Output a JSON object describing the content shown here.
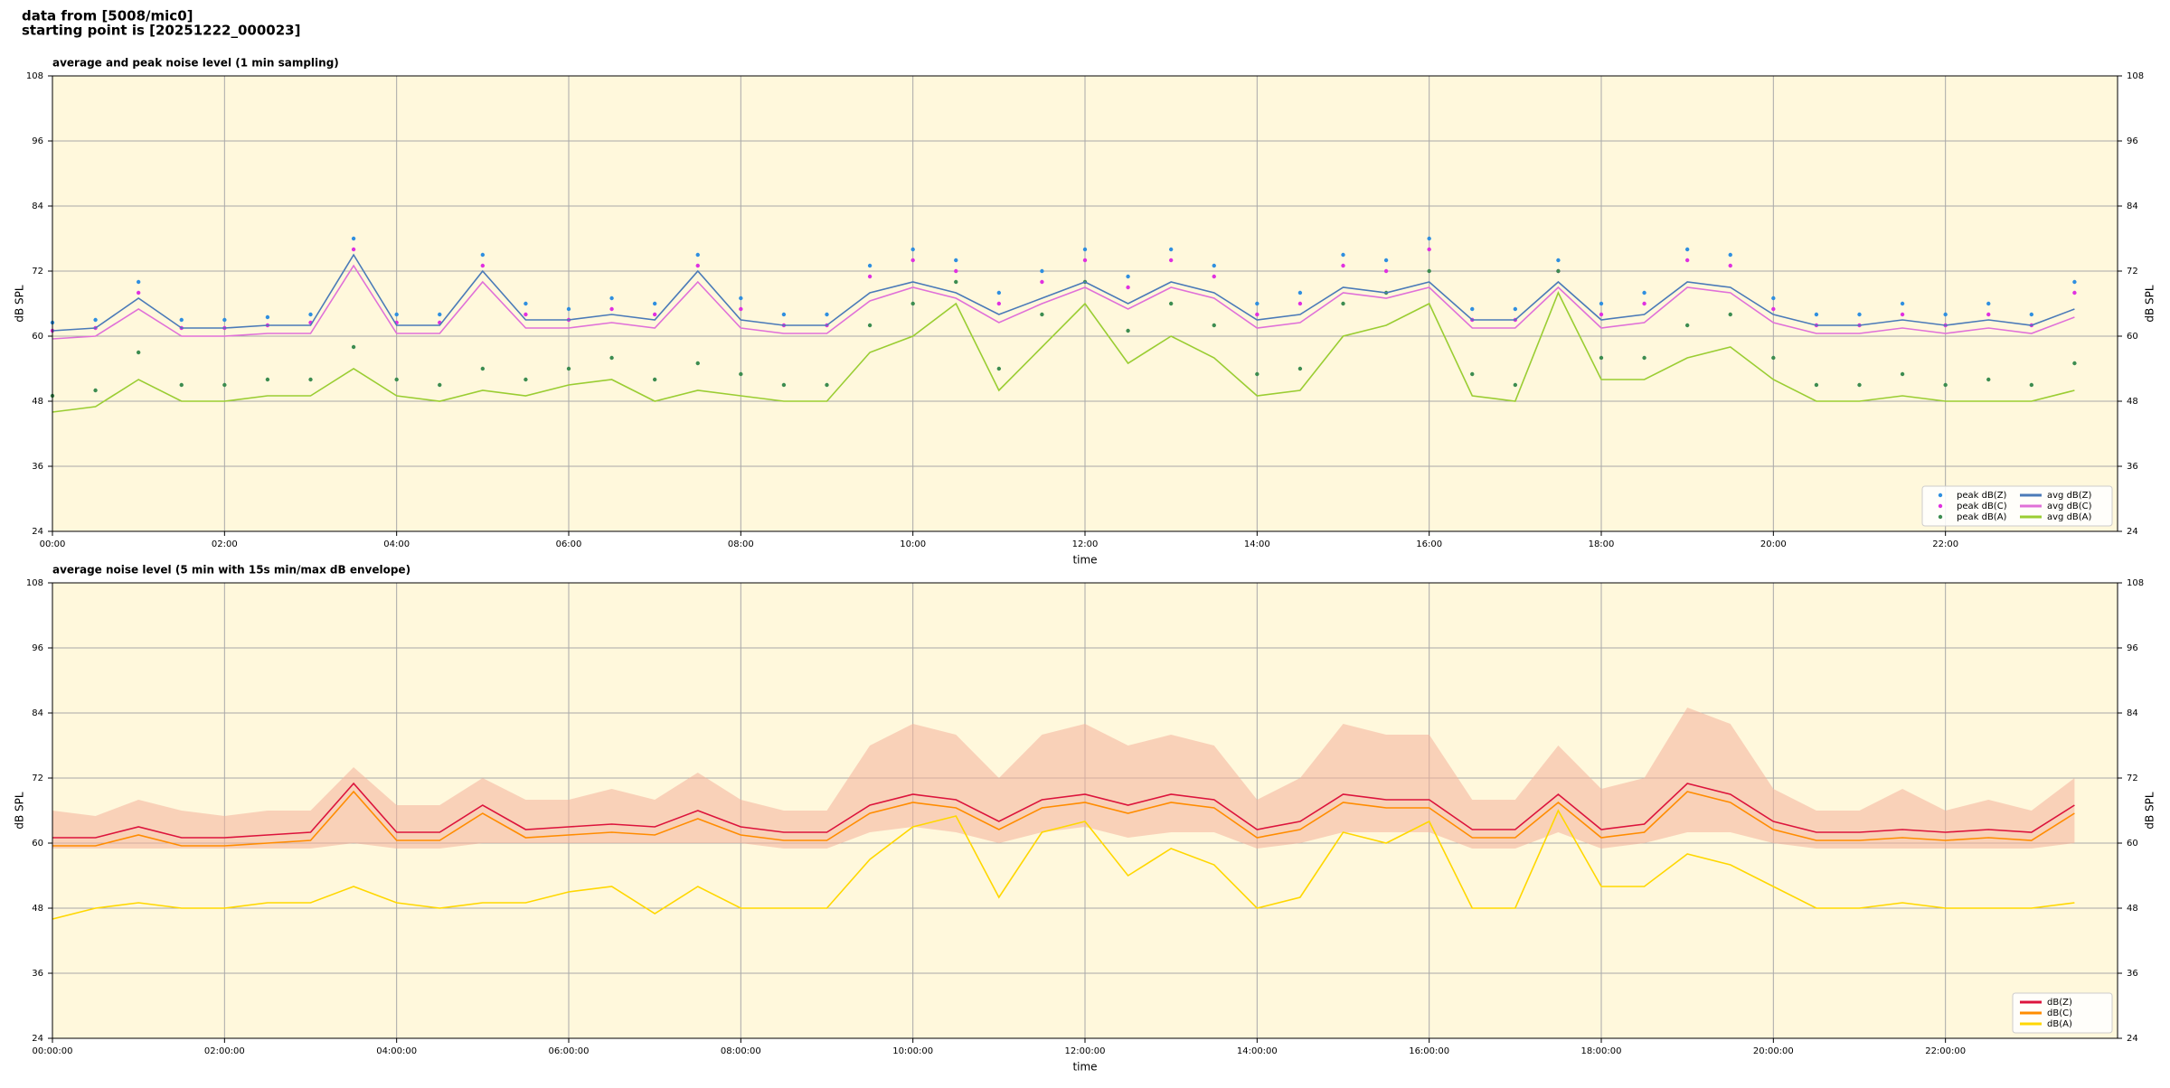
{
  "header": {
    "lines": [
      "data from [5008/mic0]",
      "starting point is [20251222_000023]"
    ]
  },
  "chart_data": [
    {
      "type": "line",
      "title": "average and peak noise level (1 min sampling)",
      "x_label": "time",
      "y_label": "dB SPL",
      "x": [
        0,
        30,
        60,
        90,
        120,
        150,
        180,
        210,
        240,
        270,
        300,
        330,
        360,
        390,
        420,
        450,
        480,
        510,
        540,
        570,
        600,
        630,
        660,
        690,
        720,
        750,
        780,
        810,
        840,
        870,
        900,
        930,
        960,
        990,
        1020,
        1050,
        1080,
        1110,
        1140,
        1170,
        1200,
        1230,
        1260,
        1290,
        1320,
        1350,
        1380,
        1410
      ],
      "xlim": [
        0,
        1440
      ],
      "xticks": [
        {
          "value": 0,
          "label": "00:00"
        },
        {
          "value": 120,
          "label": "02:00"
        },
        {
          "value": 240,
          "label": "04:00"
        },
        {
          "value": 360,
          "label": "06:00"
        },
        {
          "value": 480,
          "label": "08:00"
        },
        {
          "value": 600,
          "label": "10:00"
        },
        {
          "value": 720,
          "label": "12:00"
        },
        {
          "value": 840,
          "label": "14:00"
        },
        {
          "value": 960,
          "label": "16:00"
        },
        {
          "value": 1080,
          "label": "18:00"
        },
        {
          "value": 1200,
          "label": "20:00"
        },
        {
          "value": 1320,
          "label": "22:00"
        }
      ],
      "ylim": [
        24,
        108
      ],
      "yticks": [
        24,
        36,
        48,
        60,
        72,
        84,
        96,
        108
      ],
      "grid": true,
      "background": "#fff8dc",
      "legend": "lower right",
      "legend_columns": 2,
      "series": [
        {
          "name": "peak dB(Z)",
          "color": "#2f8fe0",
          "style": "points",
          "values": [
            62.5,
            63,
            70,
            63,
            63,
            63.5,
            64,
            78,
            64,
            64,
            75,
            66,
            65,
            67,
            66,
            75,
            67,
            64,
            64,
            73,
            76,
            74,
            68,
            72,
            76,
            71,
            76,
            73,
            66,
            68,
            75,
            74,
            78,
            65,
            65,
            74,
            66,
            68,
            76,
            75,
            67,
            64,
            64,
            66,
            64,
            66,
            64,
            70
          ]
        },
        {
          "name": "peak dB(C)",
          "color": "#e030e0",
          "style": "points",
          "values": [
            61,
            61.5,
            68,
            61.5,
            61.5,
            62,
            62.5,
            76,
            62.5,
            62.5,
            73,
            64,
            63,
            65,
            64,
            73,
            65,
            62,
            62,
            71,
            74,
            72,
            66,
            70,
            74,
            69,
            74,
            71,
            64,
            66,
            73,
            72,
            76,
            63,
            63,
            72,
            64,
            66,
            74,
            73,
            65,
            62,
            62,
            64,
            62,
            64,
            62,
            68
          ]
        },
        {
          "name": "peak dB(A)",
          "color": "#3c8c50",
          "style": "points",
          "values": [
            49,
            50,
            57,
            51,
            51,
            52,
            52,
            58,
            52,
            51,
            54,
            52,
            54,
            56,
            52,
            55,
            53,
            51,
            51,
            62,
            66,
            70,
            54,
            64,
            70,
            61,
            66,
            62,
            53,
            54,
            66,
            68,
            72,
            53,
            51,
            72,
            56,
            56,
            62,
            64,
            56,
            51,
            51,
            53,
            51,
            52,
            51,
            55
          ]
        },
        {
          "name": "avg dB(Z)",
          "color": "#4a7ab8",
          "style": "line",
          "values": [
            61,
            61.5,
            67,
            61.5,
            61.5,
            62,
            62,
            75,
            62,
            62,
            72,
            63,
            63,
            64,
            63,
            72,
            63,
            62,
            62,
            68,
            70,
            68,
            64,
            67,
            70,
            66,
            70,
            68,
            63,
            64,
            69,
            68,
            70,
            63,
            63,
            70,
            63,
            64,
            70,
            69,
            64,
            62,
            62,
            63,
            62,
            63,
            62,
            65
          ]
        },
        {
          "name": "avg dB(C)",
          "color": "#e070d8",
          "style": "line",
          "values": [
            59.5,
            60,
            65,
            60,
            60,
            60.5,
            60.5,
            73,
            60.5,
            60.5,
            70,
            61.5,
            61.5,
            62.5,
            61.5,
            70,
            61.5,
            60.5,
            60.5,
            66.5,
            69,
            67,
            62.5,
            66,
            69,
            65,
            69,
            67,
            61.5,
            62.5,
            68,
            67,
            69,
            61.5,
            61.5,
            69,
            61.5,
            62.5,
            69,
            68,
            62.5,
            60.5,
            60.5,
            61.5,
            60.5,
            61.5,
            60.5,
            63.5
          ]
        },
        {
          "name": "avg dB(A)",
          "color": "#9acd32",
          "style": "line",
          "values": [
            46,
            47,
            52,
            48,
            48,
            49,
            49,
            54,
            49,
            48,
            50,
            49,
            51,
            52,
            48,
            50,
            49,
            48,
            48,
            57,
            60,
            66,
            50,
            58,
            66,
            55,
            60,
            56,
            49,
            50,
            60,
            62,
            66,
            49,
            48,
            68,
            52,
            52,
            56,
            58,
            52,
            48,
            48,
            49,
            48,
            48,
            48,
            50
          ]
        }
      ]
    },
    {
      "type": "line",
      "title": "average noise level (5 min with 15s min/max dB envelope)",
      "x_label": "time",
      "y_label": "dB SPL",
      "x": [
        0,
        30,
        60,
        90,
        120,
        150,
        180,
        210,
        240,
        270,
        300,
        330,
        360,
        390,
        420,
        450,
        480,
        510,
        540,
        570,
        600,
        630,
        660,
        690,
        720,
        750,
        780,
        810,
        840,
        870,
        900,
        930,
        960,
        990,
        1020,
        1050,
        1080,
        1110,
        1140,
        1170,
        1200,
        1230,
        1260,
        1290,
        1320,
        1350,
        1380,
        1410
      ],
      "xlim": [
        0,
        1440
      ],
      "xticks": [
        {
          "value": 0,
          "label": "00:00:00"
        },
        {
          "value": 120,
          "label": "02:00:00"
        },
        {
          "value": 240,
          "label": "04:00:00"
        },
        {
          "value": 360,
          "label": "06:00:00"
        },
        {
          "value": 480,
          "label": "08:00:00"
        },
        {
          "value": 600,
          "label": "10:00:00"
        },
        {
          "value": 720,
          "label": "12:00:00"
        },
        {
          "value": 840,
          "label": "14:00:00"
        },
        {
          "value": 960,
          "label": "16:00:00"
        },
        {
          "value": 1080,
          "label": "18:00:00"
        },
        {
          "value": 1200,
          "label": "20:00:00"
        },
        {
          "value": 1320,
          "label": "22:00:00"
        }
      ],
      "ylim": [
        24,
        108
      ],
      "yticks": [
        24,
        36,
        48,
        60,
        72,
        84,
        96,
        108
      ],
      "grid": true,
      "background": "#fff8dc",
      "legend": "lower right",
      "legend_columns": 1,
      "band": {
        "color": "#f4b09a",
        "upper": [
          66,
          65,
          68,
          66,
          65,
          66,
          66,
          74,
          67,
          67,
          72,
          68,
          68,
          70,
          68,
          73,
          68,
          66,
          66,
          78,
          82,
          80,
          72,
          80,
          82,
          78,
          80,
          78,
          68,
          72,
          82,
          80,
          80,
          68,
          68,
          78,
          70,
          72,
          85,
          82,
          70,
          66,
          66,
          70,
          66,
          68,
          66,
          72
        ],
        "lower": [
          59,
          59,
          59,
          59,
          59,
          59,
          59,
          60,
          59,
          59,
          60,
          60,
          60,
          60,
          60,
          60,
          60,
          59,
          59,
          62,
          63,
          62,
          60,
          62,
          63,
          61,
          62,
          62,
          59,
          60,
          62,
          62,
          62,
          59,
          59,
          62,
          59,
          60,
          62,
          62,
          60,
          59,
          59,
          59,
          59,
          59,
          59,
          60
        ]
      },
      "series": [
        {
          "name": "dB(Z)",
          "color": "#dc143c",
          "style": "line",
          "values": [
            61,
            61,
            63,
            61,
            61,
            61.5,
            62,
            71,
            62,
            62,
            67,
            62.5,
            63,
            63.5,
            63,
            66,
            63,
            62,
            62,
            67,
            69,
            68,
            64,
            68,
            69,
            67,
            69,
            68,
            62.5,
            64,
            69,
            68,
            68,
            62.5,
            62.5,
            69,
            62.5,
            63.5,
            71,
            69,
            64,
            62,
            62,
            62.5,
            62,
            62.5,
            62,
            67
          ]
        },
        {
          "name": "dB(C)",
          "color": "#ff8c00",
          "style": "line",
          "values": [
            59.5,
            59.5,
            61.5,
            59.5,
            59.5,
            60,
            60.5,
            69.5,
            60.5,
            60.5,
            65.5,
            61,
            61.5,
            62,
            61.5,
            64.5,
            61.5,
            60.5,
            60.5,
            65.5,
            67.5,
            66.5,
            62.5,
            66.5,
            67.5,
            65.5,
            67.5,
            66.5,
            61,
            62.5,
            67.5,
            66.5,
            66.5,
            61,
            61,
            67.5,
            61,
            62,
            69.5,
            67.5,
            62.5,
            60.5,
            60.5,
            61,
            60.5,
            61,
            60.5,
            65.5
          ]
        },
        {
          "name": "dB(A)",
          "color": "#ffd700",
          "style": "line",
          "values": [
            46,
            48,
            49,
            48,
            48,
            49,
            49,
            52,
            49,
            48,
            49,
            49,
            51,
            52,
            47,
            52,
            48,
            48,
            48,
            57,
            63,
            65,
            50,
            62,
            64,
            54,
            59,
            56,
            48,
            50,
            62,
            60,
            64,
            48,
            48,
            66,
            52,
            52,
            58,
            56,
            52,
            48,
            48,
            49,
            48,
            48,
            48,
            49
          ]
        }
      ]
    }
  ]
}
